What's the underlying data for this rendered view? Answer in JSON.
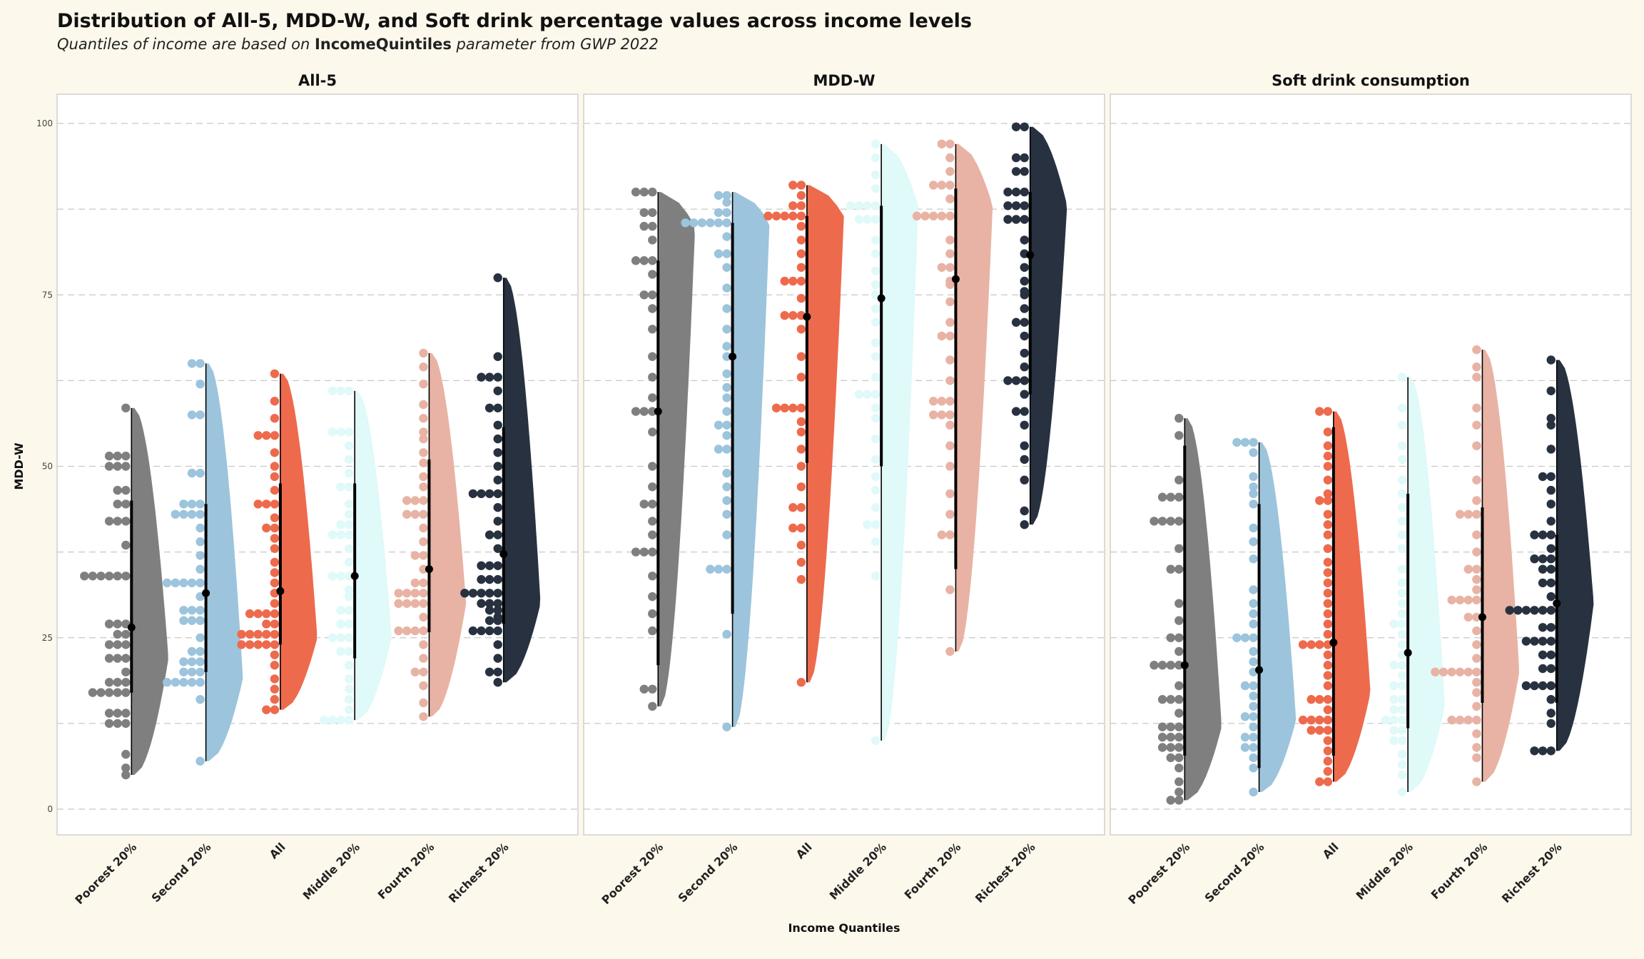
{
  "title": "Distribution of All-5, MDD-W, and Soft drink percentage values across income levels",
  "subtitle": {
    "prefix": "Quantiles of income are based on ",
    "param": "IncomeQuintiles",
    "suffix": " parameter from GWP 2022"
  },
  "colors": {
    "Poorest 20%": "#7f7f7f",
    "Second 20%": "#9cc4dc",
    "All": "#ee6a4d",
    "Middle 20%": "#e0f9f9",
    "Fourth 20%": "#e8b3a4",
    "Richest 20%": "#283140"
  },
  "chart_data": {
    "type": "raincloud",
    "xlabel": "Income Quantiles",
    "ylabel": "MDD-W",
    "ylim": [
      0,
      100
    ],
    "yticks": [
      0,
      25,
      50,
      75,
      100
    ],
    "categories": [
      "Poorest 20%",
      "Second 20%",
      "All",
      "Middle 20%",
      "Fourth 20%",
      "Richest 20%"
    ],
    "panels": [
      {
        "title": "All-5",
        "series": [
          {
            "name": "Poorest 20%",
            "min": 5,
            "max": 58.5,
            "q1": 17,
            "median": 26.5,
            "q3": 45,
            "mode": 22,
            "points": [
              5,
              6,
              8,
              12.5,
              12.5,
              12.5,
              14,
              14,
              14,
              17,
              17,
              17,
              17,
              17,
              18.5,
              18.5,
              18.5,
              20,
              22,
              22,
              22,
              24,
              24,
              24,
              25.5,
              25.5,
              27,
              27,
              27,
              34,
              34,
              34,
              34,
              34,
              34,
              38.5,
              42,
              42,
              42,
              44.5,
              44.5,
              46.5,
              46.5,
              50,
              50,
              50,
              51.5,
              51.5,
              51.5,
              58.5
            ]
          },
          {
            "name": "Second 20%",
            "min": 7,
            "max": 65,
            "q1": 20,
            "median": 31.5,
            "q3": 44.5,
            "mode": 19,
            "points": [
              7,
              16,
              18.5,
              18.5,
              18.5,
              18.5,
              18.5,
              20,
              20,
              20,
              21.5,
              21.5,
              21.5,
              23,
              23,
              25,
              27.5,
              27.5,
              27.5,
              29,
              29,
              29,
              31,
              33,
              33,
              33,
              33,
              33,
              35,
              37,
              39,
              41,
              43,
              43,
              43,
              43,
              44.5,
              44.5,
              44.5,
              49,
              49,
              57.5,
              57.5,
              62,
              65,
              65
            ]
          },
          {
            "name": "All",
            "min": 14.5,
            "max": 63.5,
            "q1": 24,
            "median": 31.8,
            "q3": 47.5,
            "mode": 25,
            "points": [
              14.5,
              14.5,
              16,
              17.5,
              19,
              21,
              22.5,
              24,
              24,
              24,
              24,
              24,
              25.5,
              25.5,
              25.5,
              25.5,
              25.5,
              27,
              27,
              28.5,
              28.5,
              28.5,
              28.5,
              30,
              31.5,
              33,
              34.5,
              36,
              38,
              39.5,
              41,
              41,
              42.5,
              44.5,
              44.5,
              44.5,
              46.5,
              48.5,
              50,
              52,
              54.5,
              54.5,
              54.5,
              57,
              59.5,
              63.5
            ]
          },
          {
            "name": "Middle 20%",
            "min": 13,
            "max": 61,
            "q1": 22,
            "median": 34,
            "q3": 47.5,
            "mode": 25,
            "points": [
              13,
              13,
              13,
              13,
              14.5,
              16,
              17.5,
              19,
              21,
              23,
              23,
              25,
              25,
              25,
              27,
              27,
              29,
              29,
              31,
              32,
              34,
              34,
              34,
              36,
              38,
              40,
              40,
              40,
              41.5,
              41.5,
              43,
              44.5,
              47,
              47,
              49,
              51,
              53,
              55,
              55,
              55,
              61,
              61,
              61
            ]
          },
          {
            "name": "Fourth 20%",
            "min": 13.5,
            "max": 66.5,
            "q1": 25.8,
            "median": 35,
            "q3": 51,
            "mode": 30,
            "points": [
              13.5,
              15.5,
              18,
              20,
              20,
              22,
              24,
              26,
              26,
              26,
              26,
              28,
              30,
              30,
              30,
              30,
              31.5,
              31.5,
              31.5,
              31.5,
              33,
              33,
              35,
              37,
              37,
              39,
              41,
              43,
              43,
              43,
              45,
              45,
              45,
              47,
              48.5,
              50.5,
              52,
              54,
              55,
              57,
              59,
              62,
              64.5,
              66.5
            ]
          },
          {
            "name": "Richest 20%",
            "min": 18.5,
            "max": 77.5,
            "q1": 27,
            "median": 37.2,
            "q3": 55.7,
            "mode": 30,
            "points": [
              18.5,
              20,
              20,
              22,
              24,
              26,
              26,
              26,
              26,
              27.5,
              27.5,
              28,
              29,
              29,
              30,
              30,
              30,
              31.5,
              31.5,
              31.5,
              31.5,
              31.5,
              33.5,
              33.5,
              33.5,
              35.5,
              35.5,
              35.5,
              38,
              40,
              40,
              42,
              44,
              46,
              46,
              46,
              46,
              48,
              50,
              52,
              54,
              56,
              58.5,
              58.5,
              61,
              63,
              63,
              63,
              66,
              77.5
            ]
          }
        ]
      },
      {
        "title": "MDD-W",
        "series": [
          {
            "name": "Poorest 20%",
            "min": 15,
            "max": 90,
            "q1": 21,
            "median": 58,
            "q3": 80,
            "mode": 85,
            "points": [
              15,
              17.5,
              17.5,
              26,
              28.5,
              31,
              34,
              37.5,
              37.5,
              37.5,
              40,
              42,
              44.5,
              44.5,
              47,
              50,
              55,
              58,
              58,
              58,
              60,
              63,
              66,
              70,
              73,
              75,
              75,
              78,
              80,
              80,
              80,
              83,
              85,
              85,
              87,
              87,
              90,
              90,
              90
            ]
          },
          {
            "name": "Second 20%",
            "min": 12,
            "max": 90,
            "q1": 28.5,
            "median": 66,
            "q3": 85.5,
            "mode": 85.5,
            "points": [
              12,
              25.5,
              35,
              35,
              35,
              40,
              43,
              45,
              47,
              49,
              52.5,
              52.5,
              54.5,
              56,
              56,
              58,
              60,
              61.5,
              63.5,
              66,
              67.5,
              70,
              73,
              76,
              79,
              81,
              81,
              83.5,
              85.5,
              85.5,
              85.5,
              85.5,
              85.5,
              85.5,
              87,
              87,
              88.5,
              89.5,
              89.5
            ]
          },
          {
            "name": "All",
            "min": 18.5,
            "max": 91,
            "q1": 50.5,
            "median": 71.8,
            "q3": 86.5,
            "mode": 86.5,
            "points": [
              18.5,
              33.5,
              36,
              38.5,
              41,
              41,
              44,
              44,
              47,
              50,
              52.5,
              55,
              56.5,
              58.5,
              58.5,
              58.5,
              58.5,
              63,
              66,
              70,
              72,
              72,
              72,
              74.5,
              77,
              77,
              77,
              79,
              81,
              83,
              85,
              86.5,
              86.5,
              86.5,
              86.5,
              86.5,
              88,
              88,
              89.5,
              91,
              91
            ]
          },
          {
            "name": "Middle 20%",
            "min": 10,
            "max": 97,
            "q1": 50,
            "median": 74.5,
            "q3": 88,
            "mode": 88,
            "points": [
              10,
              34,
              39,
              41.5,
              41.5,
              44,
              46.5,
              48.5,
              51,
              54,
              57,
              58.5,
              60.5,
              60.5,
              60.5,
              63,
              66,
              68,
              71,
              73,
              75,
              76.5,
              78.5,
              81,
              83,
              86,
              86,
              86,
              88,
              88,
              88,
              88,
              90.5,
              92.5,
              95,
              97
            ]
          },
          {
            "name": "Fourth 20%",
            "min": 23,
            "max": 97,
            "q1": 35,
            "median": 77.3,
            "q3": 90.5,
            "mode": 88,
            "points": [
              23,
              32,
              40,
              40,
              43,
              46,
              50,
              53,
              56,
              57.5,
              57.5,
              57.5,
              59.5,
              59.5,
              59.5,
              62.5,
              65.5,
              69,
              69,
              71,
              74,
              76.5,
              77,
              79,
              79,
              81,
              83,
              86.5,
              86.5,
              86.5,
              86.5,
              86.5,
              89,
              91,
              91,
              91,
              93,
              95,
              97,
              97
            ]
          },
          {
            "name": "Richest 20%",
            "min": 41.5,
            "max": 99.5,
            "q1": 60.5,
            "median": 80.8,
            "q3": 90,
            "mode": 88,
            "points": [
              41.5,
              43.5,
              48,
              51,
              53,
              56,
              58,
              58,
              60.5,
              62.5,
              62.5,
              62.5,
              64.5,
              66.5,
              69,
              71,
              71,
              73,
              75,
              75.5,
              77,
              79,
              81,
              83,
              86,
              86,
              86,
              88,
              88,
              88,
              90,
              90,
              90,
              93,
              93,
              95,
              95,
              99.5,
              99.5
            ]
          }
        ]
      },
      {
        "title": "Soft drink consumption",
        "series": [
          {
            "name": "Poorest 20%",
            "min": 1.3,
            "max": 57,
            "q1": 7.8,
            "median": 21,
            "q3": 53,
            "mode": 12,
            "points": [
              1.3,
              1.3,
              2.5,
              4,
              6,
              7.5,
              7.5,
              9,
              9,
              9,
              10.5,
              10.5,
              10.5,
              12,
              12,
              12,
              14,
              16,
              16,
              16,
              18,
              21,
              21,
              21,
              21,
              23,
              25,
              25,
              27.5,
              30,
              35,
              35,
              38,
              42,
              42,
              42,
              42,
              45.5,
              45.5,
              45.5,
              48,
              54.5,
              57
            ]
          },
          {
            "name": "Second 20%",
            "min": 2.5,
            "max": 53.5,
            "q1": 6,
            "median": 20.3,
            "q3": 44.5,
            "mode": 13,
            "points": [
              2.5,
              6,
              7.5,
              9,
              9,
              10.5,
              10.5,
              12,
              13.5,
              13.5,
              15,
              16.5,
              18,
              18,
              20,
              21.5,
              23,
              25,
              25,
              25,
              27,
              28.5,
              30,
              32,
              36.5,
              39,
              41,
              44.5,
              46,
              47,
              48.5,
              52,
              53.5,
              53.5,
              53.5
            ]
          },
          {
            "name": "All",
            "min": 4,
            "max": 58,
            "q1": 7.8,
            "median": 24.3,
            "q3": 55.7,
            "mode": 17,
            "points": [
              4,
              4,
              5.5,
              7,
              8.5,
              10,
              11.5,
              11.5,
              11.5,
              13,
              13,
              13,
              13,
              14.5,
              16,
              16,
              16,
              18,
              19.5,
              21,
              22.5,
              24,
              24,
              24,
              24,
              25.5,
              27,
              28.5,
              30,
              31.5,
              33,
              34.5,
              36,
              38,
              40,
              41.5,
              43,
              45,
              45,
              46,
              48,
              50,
              51.5,
              53,
              55,
              58,
              58
            ]
          },
          {
            "name": "Middle 20%",
            "min": 2.5,
            "max": 63,
            "q1": 11.8,
            "median": 22.8,
            "q3": 46,
            "mode": 15,
            "points": [
              2.5,
              5,
              6.5,
              8,
              10,
              10,
              11.5,
              11.5,
              13,
              13,
              13,
              14.5,
              14.5,
              16,
              16,
              18,
              18,
              19.5,
              21,
              21,
              22.5,
              24,
              25.5,
              27,
              27,
              28.5,
              30,
              31.5,
              33,
              35,
              38,
              40,
              42,
              44,
              46,
              48,
              51,
              53,
              56,
              58.5,
              63
            ]
          },
          {
            "name": "Fourth 20%",
            "min": 4,
            "max": 67,
            "q1": 15.5,
            "median": 28,
            "q3": 44,
            "mode": 20,
            "points": [
              4,
              7.5,
              9,
              11,
              13,
              13,
              13,
              13,
              15,
              17,
              18.5,
              20,
              20,
              20,
              20,
              20,
              20,
              22,
              24,
              26,
              28,
              28,
              30.5,
              30.5,
              30.5,
              30.5,
              32,
              33.5,
              35,
              35,
              37.5,
              40,
              43,
              43,
              43,
              45,
              48,
              53,
              56,
              58.5,
              63,
              64.5,
              67
            ]
          },
          {
            "name": "Richest 20%",
            "min": 8.5,
            "max": 65.5,
            "q1": 15.5,
            "median": 30,
            "q3": 40,
            "mode": 30,
            "points": [
              8.5,
              8.5,
              8.5,
              12.5,
              14,
              16,
              18,
              18,
              18,
              18,
              20.5,
              20.5,
              22.5,
              22.5,
              24.5,
              24.5,
              24.5,
              24.5,
              26.5,
              26.5,
              29,
              29,
              29,
              29,
              29,
              29,
              31,
              33,
              33,
              35,
              35,
              36.5,
              36.5,
              36.5,
              38,
              40,
              40,
              40,
              42,
              44.5,
              46.5,
              48.5,
              48.5,
              52.5,
              56,
              57,
              61,
              65.5
            ]
          }
        ]
      }
    ]
  }
}
